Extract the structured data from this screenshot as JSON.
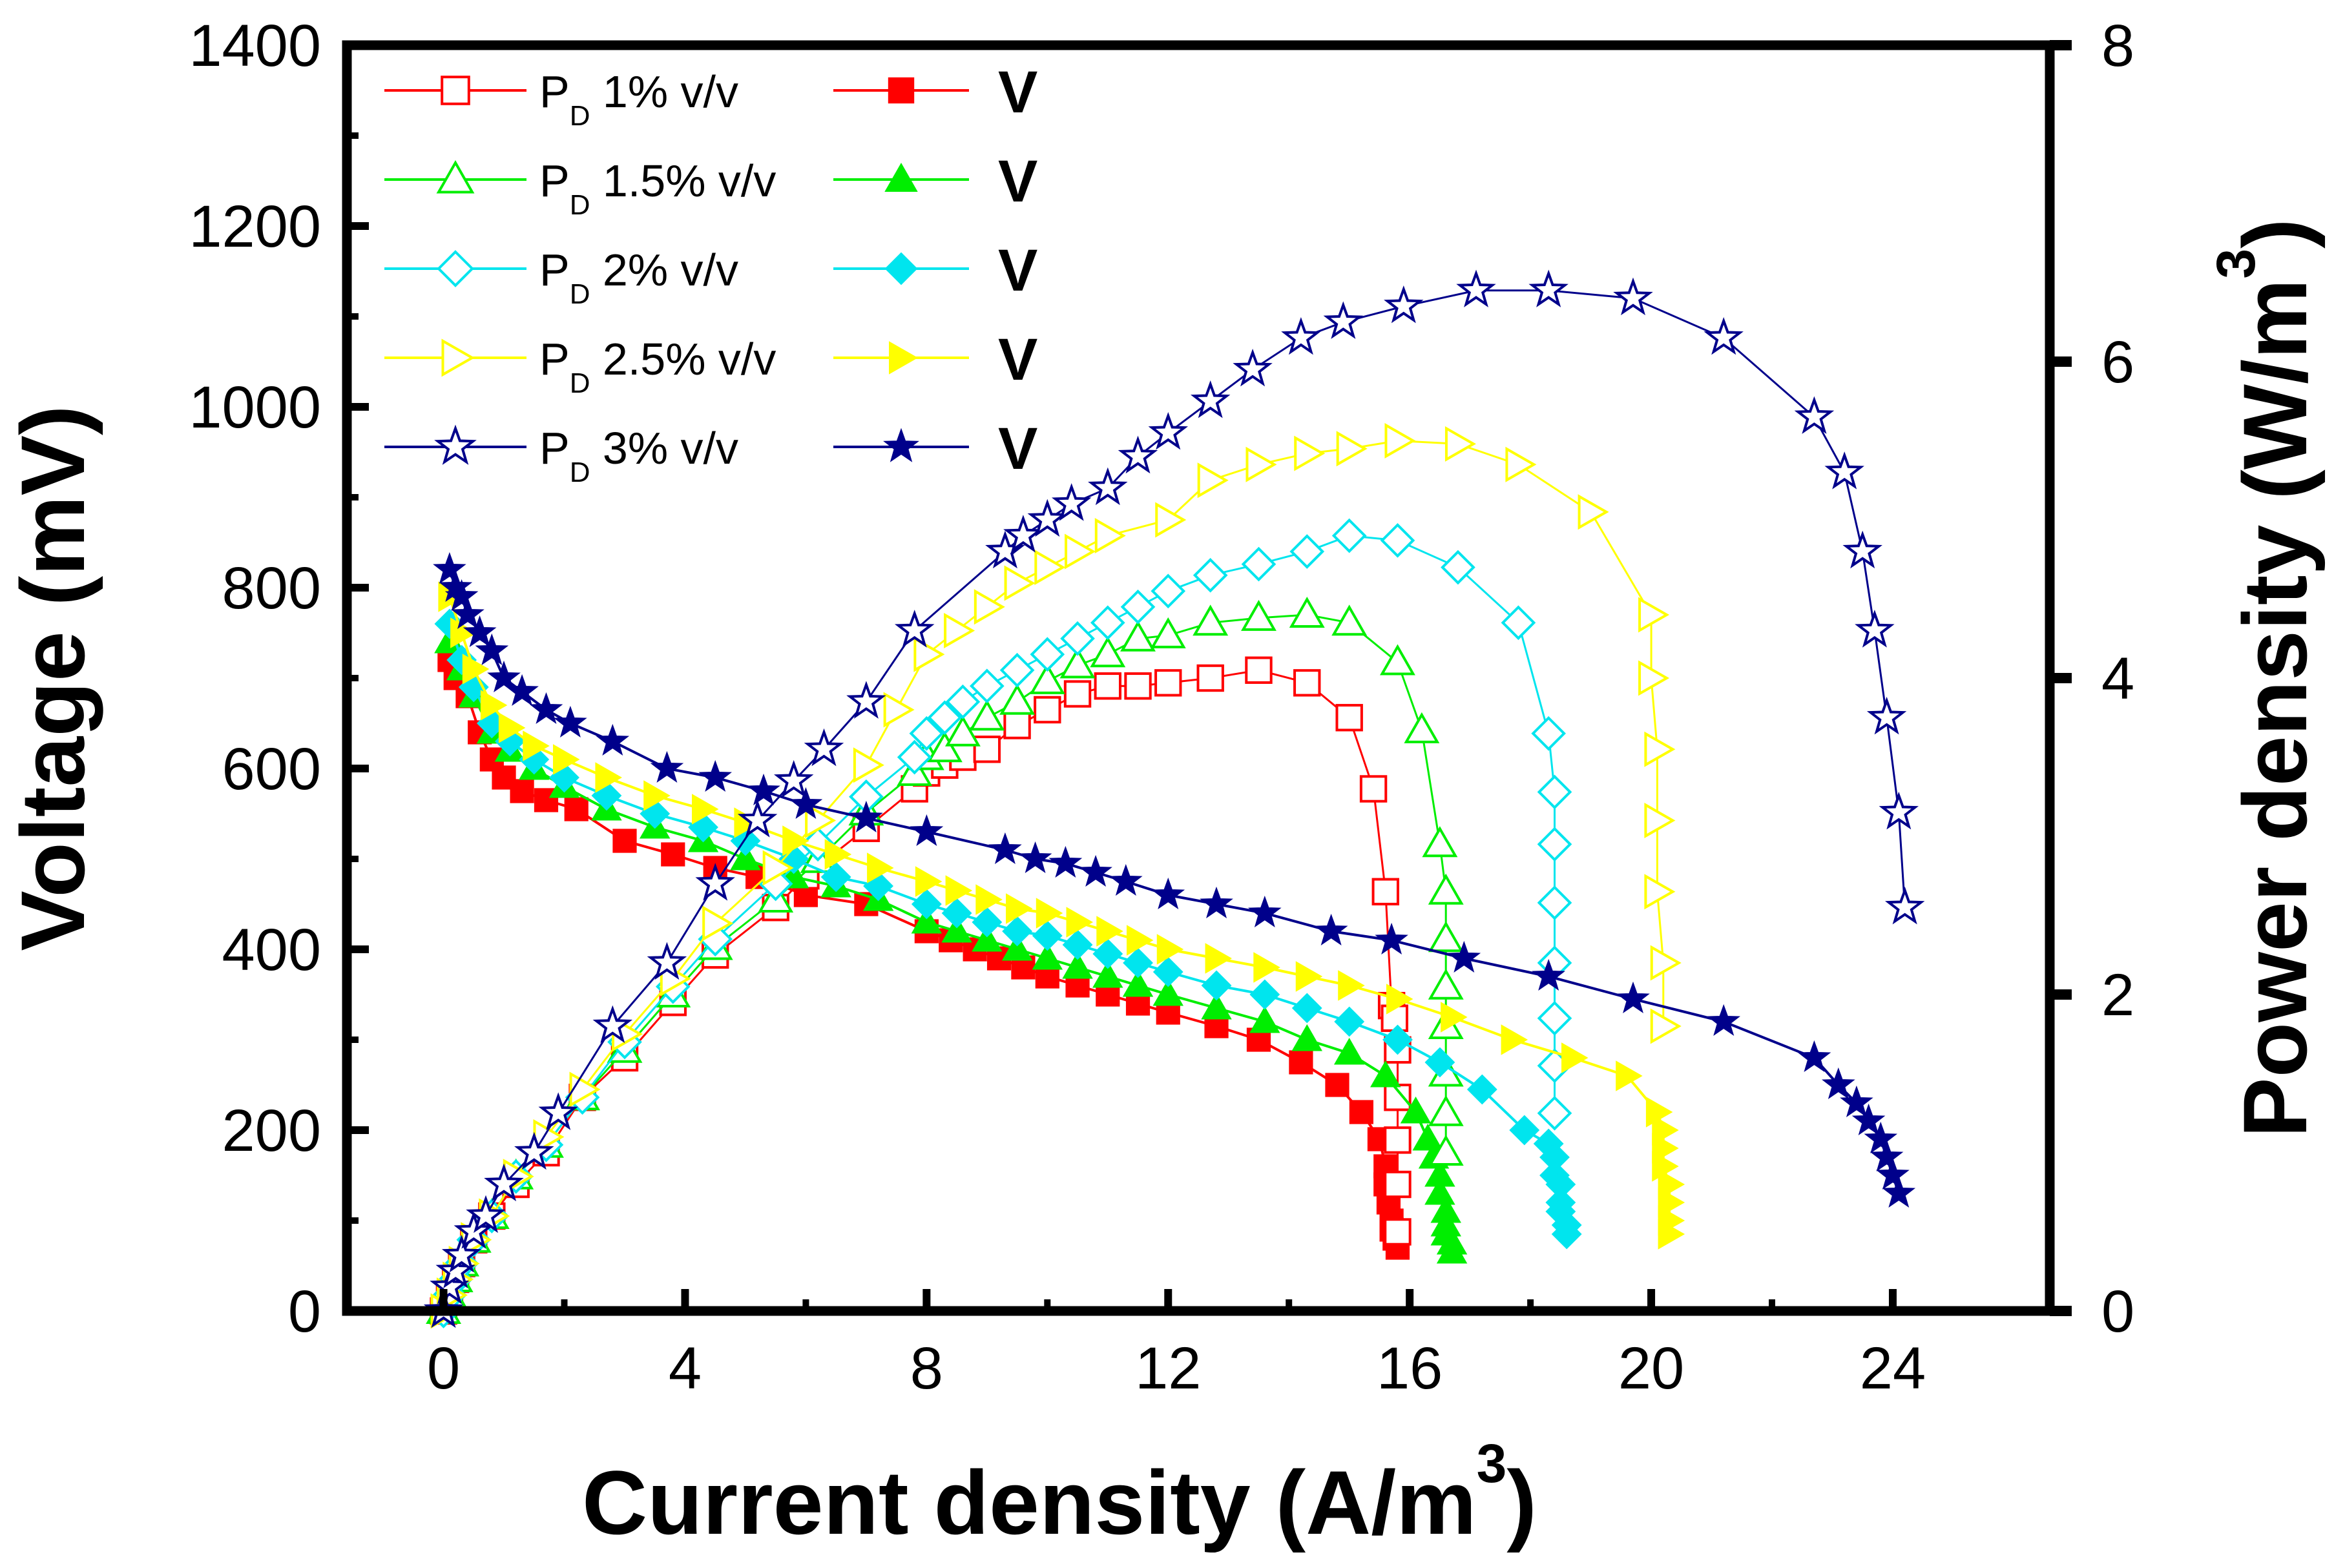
{
  "chart_data": {
    "type": "line",
    "xlabel": "Current density (A/m",
    "xlabel_sup": "3",
    "xlabel_close": ")",
    "ylabel_left": "Voltage (mV)",
    "ylabel_right": "Power density (W/m",
    "ylabel_right_sup": "3",
    "ylabel_right_close": ")",
    "xlim": [
      -1.6,
      26.6
    ],
    "ylim_left": [
      0,
      1400
    ],
    "ylim_right": [
      0,
      8
    ],
    "x_ticks": [
      0,
      4,
      8,
      12,
      16,
      20,
      24
    ],
    "y_left_ticks": [
      0,
      200,
      400,
      600,
      800,
      1000,
      1200,
      1400
    ],
    "y_right_ticks": [
      0,
      2,
      4,
      6,
      8
    ],
    "legend_position": "top-left",
    "series": [
      {
        "name": "PD 1% v/v",
        "label_main": "P",
        "label_sub": "D",
        "label_rest": " 1% v/v",
        "voltage_label": "V",
        "color": "#ff0000",
        "open_marker": "square",
        "filled_marker": "square",
        "voltage": {
          "x": [
            0.1,
            0.2,
            0.4,
            0.6,
            0.8,
            1.0,
            1.3,
            1.7,
            2.2,
            3.0,
            3.8,
            4.5,
            5.2,
            6.0,
            7.0,
            8.0,
            8.4,
            8.8,
            9.2,
            9.6,
            10.0,
            10.5,
            11.0,
            11.5,
            12.0,
            12.8,
            13.5,
            14.2,
            14.8,
            15.2,
            15.5,
            15.6,
            15.6,
            15.65,
            15.7,
            15.7,
            15.75,
            15.8
          ],
          "y": [
            720,
            700,
            680,
            640,
            610,
            590,
            575,
            565,
            555,
            520,
            505,
            490,
            480,
            460,
            450,
            420,
            410,
            400,
            390,
            380,
            370,
            360,
            350,
            340,
            330,
            315,
            300,
            275,
            250,
            220,
            190,
            160,
            140,
            120,
            100,
            90,
            80,
            70
          ]
        },
        "power": {
          "x": [
            0,
            0.1,
            0.2,
            0.3,
            0.5,
            0.8,
            1.2,
            1.7,
            2.3,
            3.0,
            3.8,
            4.5,
            5.5,
            6.0,
            7.0,
            7.8,
            8.0,
            8.3,
            8.6,
            9.0,
            9.5,
            10.0,
            10.5,
            11.0,
            11.5,
            12.0,
            12.7,
            13.5,
            14.3,
            15.0,
            15.4,
            15.6,
            15.7,
            15.75,
            15.8,
            15.8,
            15.8,
            15.8,
            15.8
          ],
          "y": [
            0,
            0.1,
            0.2,
            0.3,
            0.45,
            0.6,
            0.8,
            1.0,
            1.35,
            1.6,
            1.95,
            2.25,
            2.55,
            2.75,
            3.05,
            3.3,
            3.4,
            3.45,
            3.5,
            3.55,
            3.7,
            3.8,
            3.9,
            3.95,
            3.95,
            3.97,
            4.0,
            4.05,
            3.97,
            3.75,
            3.3,
            2.65,
            1.93,
            1.85,
            1.65,
            1.35,
            1.08,
            0.8,
            0.5
          ]
        }
      },
      {
        "name": "PD 1.5% v/v",
        "label_main": "P",
        "label_sub": "D",
        "label_rest": " 1.5% v/v",
        "voltage_label": "V",
        "color": "#00ee00",
        "open_marker": "triangle-up",
        "filled_marker": "triangle-up",
        "voltage": {
          "x": [
            0.1,
            0.3,
            0.5,
            0.8,
            1.1,
            1.5,
            2.0,
            2.7,
            3.5,
            4.3,
            5.0,
            5.8,
            6.5,
            7.2,
            8.0,
            8.5,
            9.0,
            9.5,
            10.0,
            10.5,
            11.0,
            11.5,
            12.0,
            12.8,
            13.6,
            14.3,
            15.0,
            15.6,
            16.1,
            16.3,
            16.4,
            16.5,
            16.5,
            16.6,
            16.6,
            16.6,
            16.7,
            16.7
          ],
          "y": [
            740,
            710,
            680,
            640,
            620,
            600,
            580,
            555,
            535,
            520,
            500,
            480,
            470,
            455,
            430,
            420,
            410,
            400,
            390,
            380,
            370,
            360,
            350,
            335,
            320,
            300,
            285,
            260,
            220,
            190,
            170,
            150,
            130,
            110,
            95,
            85,
            75,
            65
          ]
        },
        "power": {
          "x": [
            0,
            0.1,
            0.2,
            0.3,
            0.5,
            0.8,
            1.2,
            1.7,
            2.3,
            3.0,
            3.8,
            4.5,
            5.5,
            6.2,
            7.0,
            7.8,
            8.0,
            8.3,
            8.6,
            9.0,
            9.5,
            10.0,
            10.5,
            11.0,
            11.5,
            12.0,
            12.7,
            13.5,
            14.3,
            15.0,
            15.8,
            16.2,
            16.5,
            16.6,
            16.6,
            16.6,
            16.6,
            16.6,
            16.6,
            16.6
          ],
          "y": [
            0,
            0.1,
            0.2,
            0.3,
            0.45,
            0.6,
            0.85,
            1.05,
            1.35,
            1.65,
            2.0,
            2.3,
            2.6,
            2.85,
            3.15,
            3.4,
            3.5,
            3.55,
            3.65,
            3.75,
            3.85,
            3.98,
            4.08,
            4.15,
            4.25,
            4.27,
            4.35,
            4.38,
            4.4,
            4.35,
            4.1,
            3.67,
            2.95,
            2.65,
            2.35,
            2.05,
            1.8,
            1.5,
            1.25,
            1.0
          ]
        }
      },
      {
        "name": "PD 2% v/v",
        "label_main": "P",
        "label_sub": "D",
        "label_rest": " 2% v/v",
        "voltage_label": "V",
        "color": "#00e5ee",
        "open_marker": "diamond",
        "filled_marker": "diamond",
        "voltage": {
          "x": [
            0.1,
            0.3,
            0.5,
            0.8,
            1.1,
            1.5,
            2.0,
            2.7,
            3.5,
            4.3,
            5.0,
            5.8,
            6.5,
            7.2,
            8.0,
            8.5,
            9.0,
            9.5,
            10.0,
            10.5,
            11.0,
            11.5,
            12.0,
            12.8,
            13.6,
            14.3,
            15.0,
            15.8,
            16.5,
            17.2,
            17.9,
            18.3,
            18.4,
            18.4,
            18.5,
            18.5,
            18.5,
            18.6,
            18.6
          ],
          "y": [
            760,
            720,
            690,
            650,
            630,
            610,
            590,
            570,
            550,
            535,
            520,
            500,
            480,
            470,
            450,
            440,
            430,
            420,
            415,
            405,
            395,
            385,
            375,
            360,
            350,
            335,
            320,
            300,
            275,
            245,
            200,
            185,
            170,
            150,
            140,
            120,
            110,
            95,
            85
          ]
        },
        "power": {
          "x": [
            0,
            0.1,
            0.2,
            0.3,
            0.5,
            0.8,
            1.2,
            1.7,
            2.3,
            3.0,
            3.8,
            4.5,
            5.5,
            6.2,
            7.0,
            7.8,
            8.0,
            8.3,
            8.6,
            9.0,
            9.5,
            10.0,
            10.5,
            11.0,
            11.5,
            12.0,
            12.7,
            13.5,
            14.3,
            15.0,
            15.8,
            16.8,
            17.8,
            18.3,
            18.4,
            18.4,
            18.4,
            18.4,
            18.4,
            18.4,
            18.4
          ],
          "y": [
            0,
            0.1,
            0.2,
            0.3,
            0.45,
            0.6,
            0.85,
            1.05,
            1.35,
            1.7,
            2.05,
            2.35,
            2.7,
            2.95,
            3.25,
            3.5,
            3.65,
            3.75,
            3.85,
            3.95,
            4.05,
            4.15,
            4.25,
            4.35,
            4.45,
            4.55,
            4.65,
            4.72,
            4.8,
            4.9,
            4.87,
            4.7,
            4.35,
            3.65,
            3.28,
            2.95,
            2.58,
            2.2,
            1.85,
            1.55,
            1.25
          ]
        }
      },
      {
        "name": "PD 2.5% v/v",
        "label_main": "P",
        "label_sub": "D",
        "label_rest": " 2.5% v/v",
        "voltage_label": "V",
        "color": "#ffff00",
        "open_marker": "triangle-right",
        "filled_marker": "triangle-right",
        "voltage": {
          "x": [
            0.1,
            0.3,
            0.5,
            0.8,
            1.1,
            1.5,
            2.0,
            2.7,
            3.5,
            4.3,
            5.0,
            5.8,
            6.5,
            7.2,
            8.0,
            8.5,
            9.0,
            9.5,
            10.0,
            10.5,
            11.0,
            11.5,
            12.0,
            12.8,
            13.6,
            14.3,
            15.0,
            15.8,
            16.7,
            17.7,
            18.7,
            19.6,
            20.1,
            20.2,
            20.2,
            20.2,
            20.3,
            20.3,
            20.3,
            20.3
          ],
          "y": [
            790,
            750,
            710,
            670,
            645,
            625,
            610,
            590,
            570,
            555,
            540,
            520,
            505,
            490,
            475,
            465,
            455,
            445,
            440,
            430,
            420,
            410,
            400,
            390,
            380,
            370,
            360,
            345,
            325,
            300,
            280,
            260,
            220,
            200,
            180,
            160,
            140,
            120,
            100,
            85
          ]
        },
        "power": {
          "x": [
            0,
            0.1,
            0.2,
            0.3,
            0.5,
            0.8,
            1.2,
            1.7,
            2.3,
            3.0,
            3.8,
            4.5,
            5.5,
            6.2,
            7.0,
            7.5,
            8.0,
            8.5,
            9.0,
            9.5,
            10.0,
            10.5,
            11.0,
            12.0,
            12.7,
            13.5,
            14.3,
            15.0,
            15.8,
            16.8,
            17.8,
            19.0,
            20.0,
            20.0,
            20.1,
            20.1,
            20.1,
            20.2,
            20.2
          ],
          "y": [
            0,
            0.1,
            0.2,
            0.3,
            0.45,
            0.6,
            0.85,
            1.1,
            1.4,
            1.75,
            2.1,
            2.45,
            2.8,
            3.1,
            3.45,
            3.8,
            4.15,
            4.3,
            4.45,
            4.6,
            4.7,
            4.8,
            4.9,
            5.0,
            5.25,
            5.35,
            5.42,
            5.45,
            5.5,
            5.48,
            5.35,
            5.05,
            4.4,
            4.0,
            3.55,
            3.1,
            2.65,
            2.2,
            1.8
          ]
        }
      },
      {
        "name": "PD 3% v/v",
        "label_main": "P",
        "label_sub": "D",
        "label_rest": " 3% v/v",
        "voltage_label": "V",
        "color": "#00008b",
        "open_marker": "star",
        "filled_marker": "star",
        "voltage": {
          "x": [
            0.1,
            0.2,
            0.3,
            0.4,
            0.6,
            0.8,
            1.0,
            1.3,
            1.7,
            2.1,
            2.8,
            3.7,
            4.5,
            5.3,
            6.0,
            7.0,
            8.0,
            9.3,
            9.8,
            10.3,
            10.8,
            11.3,
            12.0,
            12.8,
            13.6,
            14.7,
            15.7,
            16.9,
            18.3,
            19.7,
            21.2,
            22.7,
            23.1,
            23.4,
            23.6,
            23.8,
            23.9,
            24.0,
            24.1
          ],
          "y": [
            820,
            800,
            790,
            770,
            750,
            730,
            700,
            685,
            665,
            650,
            630,
            600,
            590,
            575,
            560,
            545,
            530,
            510,
            500,
            495,
            485,
            475,
            460,
            450,
            440,
            420,
            410,
            390,
            370,
            345,
            320,
            280,
            250,
            230,
            210,
            190,
            170,
            150,
            130
          ]
        },
        "power": {
          "x": [
            0,
            0.1,
            0.2,
            0.3,
            0.5,
            0.7,
            1.0,
            1.5,
            1.9,
            2.8,
            3.7,
            4.5,
            5.2,
            5.8,
            6.3,
            7.0,
            7.8,
            9.3,
            9.6,
            10.0,
            10.4,
            11.0,
            11.5,
            12.0,
            12.7,
            13.4,
            14.2,
            14.9,
            15.9,
            17.1,
            18.3,
            19.7,
            21.2,
            22.7,
            23.2,
            23.5,
            23.7,
            23.9,
            24.1,
            24.2
          ],
          "y": [
            0,
            0.15,
            0.25,
            0.35,
            0.5,
            0.6,
            0.8,
            1.0,
            1.25,
            1.8,
            2.2,
            2.7,
            3.1,
            3.35,
            3.55,
            3.85,
            4.3,
            4.8,
            4.9,
            5.0,
            5.1,
            5.2,
            5.4,
            5.55,
            5.75,
            5.95,
            6.15,
            6.25,
            6.35,
            6.45,
            6.45,
            6.4,
            6.15,
            5.65,
            5.3,
            4.8,
            4.3,
            3.75,
            3.15,
            2.55
          ]
        }
      }
    ]
  }
}
